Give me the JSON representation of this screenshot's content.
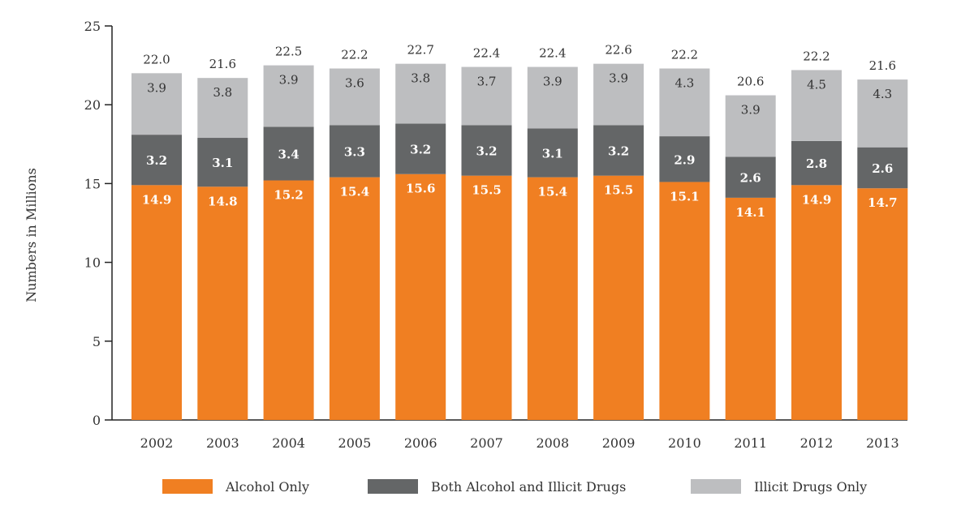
{
  "chart_data": {
    "type": "bar",
    "stacked": true,
    "title": "",
    "xlabel": "",
    "ylabel": "Numbers in Millions",
    "ylim": [
      0,
      25
    ],
    "yticks": [
      0,
      5,
      10,
      15,
      20,
      25
    ],
    "grid": false,
    "legend_position": "bottom",
    "categories": [
      "2002",
      "2003",
      "2004",
      "2005",
      "2006",
      "2007",
      "2008",
      "2009",
      "2010",
      "2011",
      "2012",
      "2013"
    ],
    "series": [
      {
        "name": "Alcohol Only",
        "color": "#F07F22",
        "label_color": "#ffffff",
        "values": [
          14.9,
          14.8,
          15.2,
          15.4,
          15.6,
          15.5,
          15.4,
          15.5,
          15.1,
          14.1,
          14.9,
          14.7
        ]
      },
      {
        "name": "Both Alcohol and Illicit Drugs",
        "color": "#646667",
        "label_color": "#ffffff",
        "values": [
          3.2,
          3.1,
          3.4,
          3.3,
          3.2,
          3.2,
          3.1,
          3.2,
          2.9,
          2.6,
          2.8,
          2.6
        ]
      },
      {
        "name": "Illicit Drugs Only",
        "color": "#BDBEC0",
        "label_color": "#333333",
        "values": [
          3.9,
          3.8,
          3.9,
          3.6,
          3.8,
          3.7,
          3.9,
          3.9,
          4.3,
          3.9,
          4.5,
          4.3
        ]
      }
    ],
    "totals": [
      "22.0",
      "21.6",
      "22.5",
      "22.2",
      "22.7",
      "22.4",
      "22.4",
      "22.6",
      "22.2",
      "20.6",
      "22.2",
      "21.6"
    ]
  }
}
